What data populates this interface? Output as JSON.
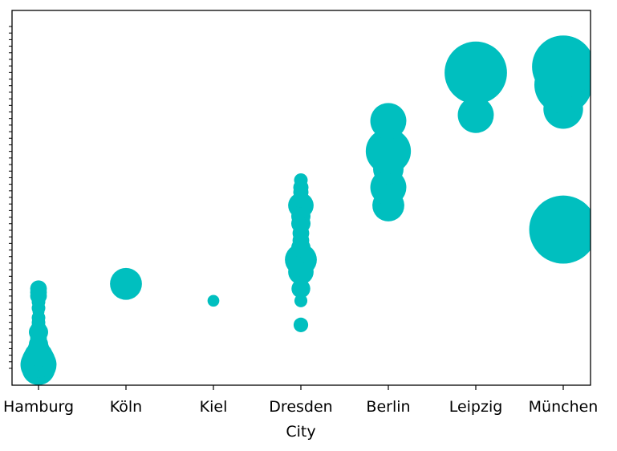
{
  "chart_data": {
    "type": "scatter",
    "title": "",
    "xlabel": "City",
    "ylabel": "",
    "categories": [
      "Hamburg",
      "Köln",
      "Kiel",
      "Dresden",
      "Berlin",
      "Leipzig",
      "München"
    ],
    "ylim": [
      0,
      28
    ],
    "y_minor_ticks": 53,
    "grid": false,
    "marker_color": "#00bfbf",
    "points": [
      {
        "city": "Hamburg",
        "y": 0,
        "size": 12
      },
      {
        "city": "Hamburg",
        "y": 0.3,
        "size": 14
      },
      {
        "city": "Hamburg",
        "y": 0.6,
        "size": 12
      },
      {
        "city": "Hamburg",
        "y": 0.8,
        "size": 10
      },
      {
        "city": "Hamburg",
        "y": 1.0,
        "size": 9
      },
      {
        "city": "Hamburg",
        "y": 1.2,
        "size": 7
      },
      {
        "city": "Hamburg",
        "y": 1.6,
        "size": 5
      },
      {
        "city": "Hamburg",
        "y": 2.0,
        "size": 4
      },
      {
        "city": "Hamburg",
        "y": 2.5,
        "size": 3
      },
      {
        "city": "Hamburg",
        "y": 3.0,
        "size": 4
      },
      {
        "city": "Hamburg",
        "y": 3.2,
        "size": 3
      },
      {
        "city": "Hamburg",
        "y": 3.5,
        "size": 2
      },
      {
        "city": "Hamburg",
        "y": 3.8,
        "size": 2
      },
      {
        "city": "Hamburg",
        "y": 4.2,
        "size": 2
      },
      {
        "city": "Hamburg",
        "y": 4.7,
        "size": 1.5
      },
      {
        "city": "Hamburg",
        "y": 5.0,
        "size": 2
      },
      {
        "city": "Hamburg",
        "y": 5.5,
        "size": 2
      },
      {
        "city": "Hamburg",
        "y": 6.0,
        "size": 3
      },
      {
        "city": "Hamburg",
        "y": 6.3,
        "size": 3
      },
      {
        "city": "Hamburg",
        "y": 6.6,
        "size": 3
      },
      {
        "city": "Köln",
        "y": 7.0,
        "size": 11
      },
      {
        "city": "Kiel",
        "y": 5.6,
        "size": 1.5
      },
      {
        "city": "Dresden",
        "y": 3.6,
        "size": 2.3
      },
      {
        "city": "Dresden",
        "y": 5.6,
        "size": 1.8
      },
      {
        "city": "Dresden",
        "y": 6.6,
        "size": 3.8
      },
      {
        "city": "Dresden",
        "y": 8.0,
        "size": 7
      },
      {
        "city": "Dresden",
        "y": 8.6,
        "size": 6
      },
      {
        "city": "Dresden",
        "y": 9.0,
        "size": 11
      },
      {
        "city": "Dresden",
        "y": 9.6,
        "size": 5
      },
      {
        "city": "Dresden",
        "y": 10.0,
        "size": 4
      },
      {
        "city": "Dresden",
        "y": 10.6,
        "size": 3
      },
      {
        "city": "Dresden",
        "y": 11.2,
        "size": 3
      },
      {
        "city": "Dresden",
        "y": 12.0,
        "size": 4
      },
      {
        "city": "Dresden",
        "y": 12.6,
        "size": 4
      },
      {
        "city": "Dresden",
        "y": 13.0,
        "size": 3.5
      },
      {
        "city": "Dresden",
        "y": 13.5,
        "size": 7
      },
      {
        "city": "Dresden",
        "y": 14.0,
        "size": 3
      },
      {
        "city": "Dresden",
        "y": 14.6,
        "size": 2.5
      },
      {
        "city": "Dresden",
        "y": 15.0,
        "size": 2.5
      },
      {
        "city": "Dresden",
        "y": 15.6,
        "size": 2
      },
      {
        "city": "Berlin",
        "y": 13.5,
        "size": 11
      },
      {
        "city": "Berlin",
        "y": 15.0,
        "size": 14
      },
      {
        "city": "Berlin",
        "y": 16.5,
        "size": 10
      },
      {
        "city": "Berlin",
        "y": 17.4,
        "size": 13
      },
      {
        "city": "Berlin",
        "y": 18.0,
        "size": 22
      },
      {
        "city": "Berlin",
        "y": 19.0,
        "size": 9
      },
      {
        "city": "Berlin",
        "y": 20.5,
        "size": 14
      },
      {
        "city": "Leipzig",
        "y": 21.0,
        "size": 14
      },
      {
        "city": "Leipzig",
        "y": 24.5,
        "size": 42
      },
      {
        "city": "München",
        "y": 11.5,
        "size": 50
      },
      {
        "city": "München",
        "y": 21.5,
        "size": 17
      },
      {
        "city": "München",
        "y": 23.5,
        "size": 36
      },
      {
        "city": "München",
        "y": 25.0,
        "size": 42
      }
    ]
  }
}
